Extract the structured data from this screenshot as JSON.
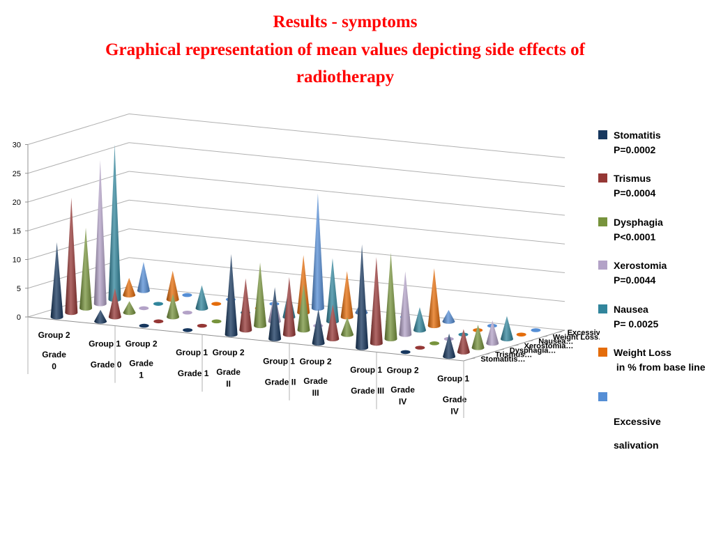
{
  "title": {
    "line1": "Results - symptoms",
    "line2": "Graphical representation of mean values depicting side effects of",
    "line3": "radiotherapy"
  },
  "legend": [
    {
      "name": "Stomatitis",
      "pvalue": "P=0.0002",
      "color": "#17375e"
    },
    {
      "name": "Trismus",
      "pvalue": "P=0.0004",
      "color": "#953735"
    },
    {
      "name": "Dysphagia",
      "pvalue": "P<0.0001",
      "color": "#77933c"
    },
    {
      "name": "Xerostomia",
      "pvalue": "P=0.0044",
      "color": "#b3a2c7"
    },
    {
      "name": "Nausea",
      "pvalue": "P= 0.0025",
      "color": "#31859c"
    },
    {
      "name": "Weight Loss",
      "pvalue": " in % from base line",
      "color": "#e46c0a"
    },
    {
      "name": "Excessive",
      "pvalue": "salivation",
      "color": "#558ed5"
    }
  ],
  "chart_data": {
    "type": "bar",
    "subtype": "3d-cone",
    "ylim": [
      0,
      30
    ],
    "yticks": [
      0,
      5,
      10,
      15,
      20,
      25,
      30
    ],
    "grid": true,
    "legend_position": "right",
    "categories": [
      {
        "group": "Group 2",
        "grade": "Grade 0"
      },
      {
        "group": "Group 1",
        "grade": "Grade 0"
      },
      {
        "group": "Group 2",
        "grade": "Grade 1"
      },
      {
        "group": "Group 1",
        "grade": "Grade 1"
      },
      {
        "group": "Group 2",
        "grade": "Grade II"
      },
      {
        "group": "Group 1",
        "grade": "Grade II"
      },
      {
        "group": "Group 2",
        "grade": "Grade III"
      },
      {
        "group": "Group 1",
        "grade": "Grade III"
      },
      {
        "group": "Group 2",
        "grade": "Grade IV"
      },
      {
        "group": "Group 1",
        "grade": "Grade IV"
      }
    ],
    "category_labels": {
      "groups": [
        "Group 2",
        "Group 1",
        "Group 2",
        "Group 1",
        "Group 2",
        "Group 1",
        "Group 2",
        "Group 1",
        "Group 2",
        "Group 1"
      ],
      "grades": [
        "Grade\n0",
        "Grade 0",
        "Grade\n1",
        "Grade 1",
        "Grade\nII",
        "Grade II",
        "Grade\nIII",
        "Grade III",
        "Grade\nIV",
        "Grade\nIV"
      ]
    },
    "depth_labels": [
      "Stomatitis…",
      "Trismus…",
      "Dysphagia…",
      "Xerostomia…",
      "Nausea…",
      "Weight Loss…",
      "Excessive salivation"
    ],
    "series": [
      {
        "name": "Stomatitis",
        "values": [
          13,
          2,
          0,
          0,
          14,
          9,
          6,
          18,
          0,
          4
        ]
      },
      {
        "name": "Trismus",
        "values": [
          20,
          5,
          0,
          0,
          9,
          10,
          6,
          15,
          0,
          4
        ]
      },
      {
        "name": "Dysphagia",
        "values": [
          14,
          2,
          4,
          0,
          11,
          8,
          3,
          15,
          0,
          4
        ]
      },
      {
        "name": "Xerostomia",
        "values": [
          25,
          0,
          0,
          0,
          5,
          0,
          0,
          11,
          0,
          4
        ]
      },
      {
        "name": "Nausea",
        "values": [
          27,
          0,
          4,
          0,
          5,
          11,
          0,
          4,
          0,
          4
        ]
      },
      {
        "name": "Weight Loss",
        "values": [
          3,
          5,
          0,
          0,
          10,
          8,
          0,
          10,
          0,
          0
        ]
      },
      {
        "name": "Excessive salivation",
        "values": [
          5,
          0,
          0,
          0,
          20,
          2,
          0,
          2,
          0,
          0
        ]
      }
    ]
  }
}
